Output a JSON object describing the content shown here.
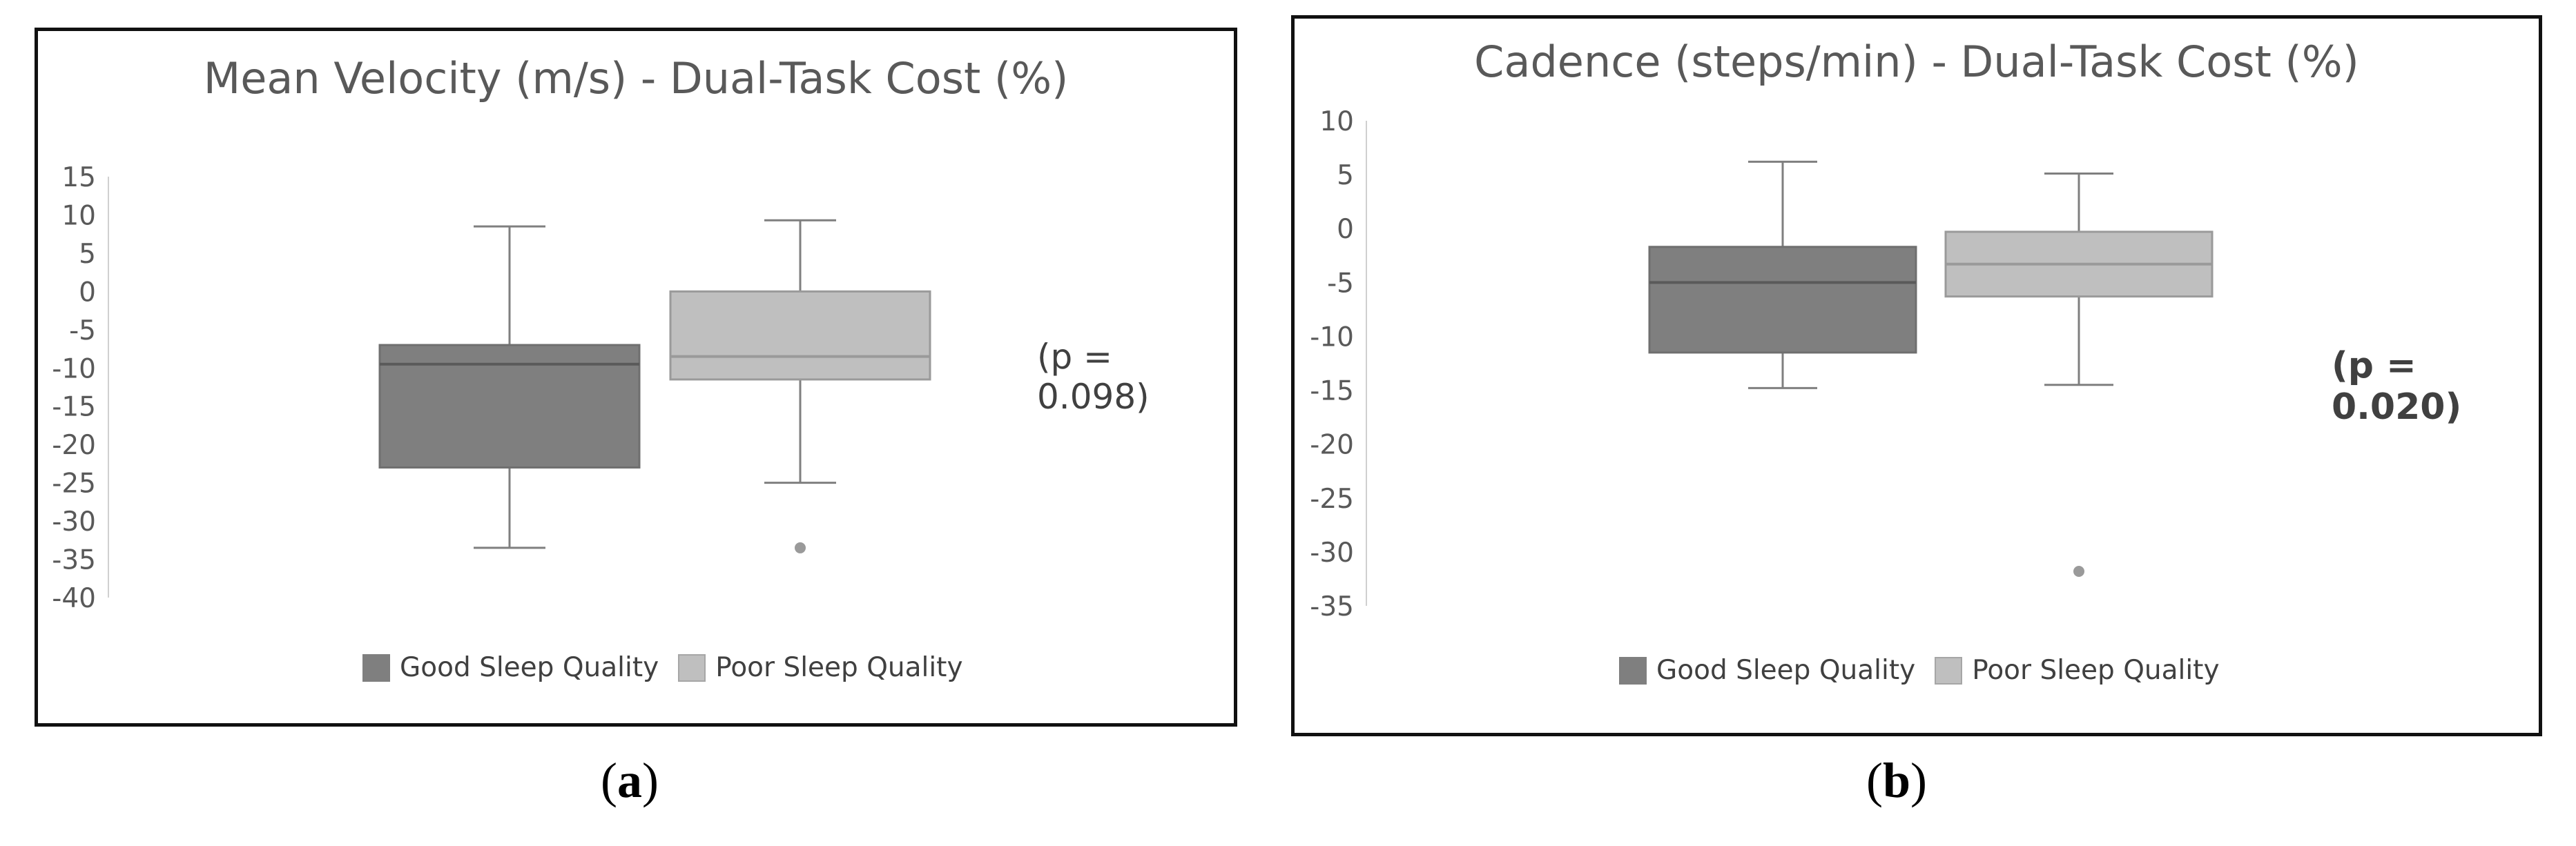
{
  "colors": {
    "good": "#7f7f7f",
    "poor": "#bfbfbf",
    "whisker": "#7f7f7f",
    "axis_text": "#595959",
    "frame": "#111111"
  },
  "chart_data": [
    {
      "type": "boxplot",
      "panel_label": "a",
      "title": "Mean Velocity (m/s) - Dual-Task Cost (%)",
      "p_value_text": "(p = 0.098)",
      "ylim": [
        -40,
        15
      ],
      "yticks": [
        15,
        10,
        5,
        0,
        -5,
        -10,
        -15,
        -20,
        -25,
        -30,
        -35,
        -40
      ],
      "grid": false,
      "legend": "bottom",
      "series": [
        {
          "name": "Good Sleep Quality",
          "color": "#7f7f7f",
          "min": -33.5,
          "q1": -23,
          "median": -9.5,
          "q3": -7,
          "max": 8.5,
          "outliers": []
        },
        {
          "name": "Poor Sleep Quality",
          "color": "#bfbfbf",
          "min": -25,
          "q1": -11.5,
          "median": -8.5,
          "q3": 0,
          "max": 9.3,
          "outliers": [
            -33.5
          ]
        }
      ]
    },
    {
      "type": "boxplot",
      "panel_label": "b",
      "title": "Cadence (steps/min) - Dual-Task Cost (%)",
      "p_value_text": "(p = 0.020)",
      "ylim": [
        -35,
        10
      ],
      "yticks": [
        10,
        5,
        0,
        -5,
        -10,
        -15,
        -20,
        -25,
        -30,
        -35
      ],
      "grid": false,
      "legend": "bottom",
      "series": [
        {
          "name": "Good Sleep Quality",
          "color": "#7f7f7f",
          "min": -14.8,
          "q1": -11.5,
          "median": -5,
          "q3": -1.7,
          "max": 6.2,
          "outliers": []
        },
        {
          "name": "Poor Sleep Quality",
          "color": "#bfbfbf",
          "min": -14.5,
          "q1": -6.3,
          "median": -3.3,
          "q3": -0.3,
          "max": 5.1,
          "outliers": [
            -31.8
          ]
        }
      ]
    }
  ]
}
